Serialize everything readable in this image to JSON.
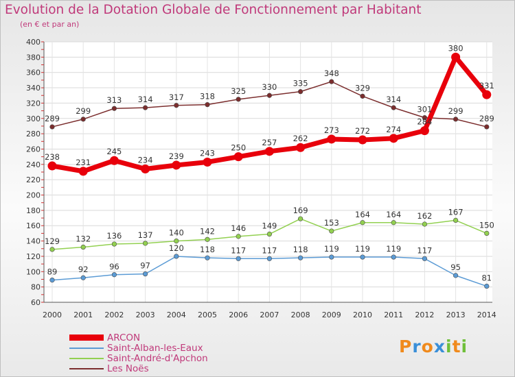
{
  "header": {
    "title": "Evolution de la Dotation Globale de Fonctionnement par Habitant",
    "subtitle": "(en € et par an)"
  },
  "logo": {
    "text": "Proxiti",
    "letters": [
      "P",
      "r",
      "o",
      "x",
      "i",
      "t",
      "i"
    ],
    "colors": [
      "#f08a1c",
      "#3a8fd8",
      "#f08a1c",
      "#3a8fd8",
      "#6fbf3a",
      "#f08a1c",
      "#6fbf3a"
    ]
  },
  "chart_data": {
    "type": "line",
    "title": "Evolution de la Dotation Globale de Fonctionnement par Habitant",
    "subtitle": "(en € et par an)",
    "x": [
      "2000",
      "2001",
      "2002",
      "2003",
      "2004",
      "2005",
      "2006",
      "2007",
      "2008",
      "2009",
      "2010",
      "2011",
      "2012",
      "2013",
      "2014"
    ],
    "ylim": [
      60,
      400
    ],
    "yticks": [
      60,
      80,
      100,
      120,
      140,
      160,
      180,
      200,
      220,
      240,
      260,
      280,
      300,
      320,
      340,
      360,
      380,
      400
    ],
    "grid": true,
    "legend_position": "bottom-left",
    "series": [
      {
        "name": "ARCON",
        "color": "#e8000b",
        "highlight": true,
        "values": [
          238,
          231,
          245,
          234,
          239,
          243,
          250,
          257,
          262,
          273,
          272,
          274,
          284,
          380,
          331
        ],
        "labels": [
          "238",
          "231",
          "245",
          "234",
          "239",
          "243",
          "250",
          "257",
          "262",
          "273",
          "272",
          "274",
          "284",
          "380",
          "331"
        ]
      },
      {
        "name": "Saint-Alban-les-Eaux",
        "color": "#5b9bd5",
        "highlight": false,
        "values": [
          89,
          92,
          96,
          97,
          120,
          118,
          117,
          117,
          118,
          119,
          119,
          119,
          117,
          95,
          81
        ],
        "labels": [
          "89",
          "92",
          "96",
          "97",
          "120",
          "118",
          "117",
          "117",
          "118",
          "119",
          "119",
          "119",
          "117",
          "95",
          "81"
        ]
      },
      {
        "name": "Saint-André-d'Apchon",
        "color": "#92d050",
        "highlight": false,
        "values": [
          129,
          132,
          136,
          137,
          140,
          142,
          146,
          149,
          169,
          153,
          164,
          164,
          162,
          167,
          150
        ],
        "labels": [
          "129",
          "132",
          "136",
          "137",
          "140",
          "142",
          "146",
          "149",
          "169",
          "153",
          "164",
          "164",
          "162",
          "167",
          "150"
        ]
      },
      {
        "name": "Les Noës",
        "color": "#7b2d2d",
        "highlight": false,
        "values": [
          289,
          299,
          313,
          314,
          317,
          318,
          325,
          330,
          335,
          348,
          329,
          314,
          301,
          299,
          289
        ],
        "labels": [
          "289",
          "299",
          "313",
          "314",
          "317",
          "318",
          "325",
          "330",
          "335",
          "348",
          "329",
          "314",
          "301",
          "299",
          "289"
        ]
      }
    ]
  }
}
